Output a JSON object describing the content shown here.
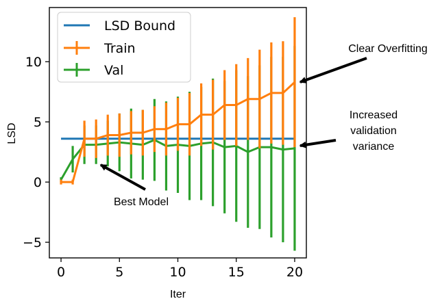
{
  "chart_data": {
    "type": "line",
    "xlabel": "Iter",
    "ylabel": "LSD",
    "xlim": [
      -1,
      21
    ],
    "ylim": [
      -6.3,
      14.5
    ],
    "xticks": [
      0,
      5,
      10,
      15,
      20
    ],
    "xtick_labels": [
      "0",
      "5",
      "10",
      "15",
      "20"
    ],
    "yticks": [
      -5,
      0,
      5,
      10
    ],
    "ytick_labels": [
      "−5",
      "0",
      "5",
      "10"
    ],
    "grid": false,
    "legend_position": "top-left",
    "x": [
      0,
      1,
      2,
      3,
      4,
      5,
      6,
      7,
      8,
      9,
      10,
      11,
      12,
      13,
      14,
      15,
      16,
      17,
      18,
      19,
      20
    ],
    "series": [
      {
        "name": "LSD Bound",
        "color": "#1f77b4",
        "kind": "line",
        "values": [
          3.6,
          3.6,
          3.6,
          3.6,
          3.6,
          3.6,
          3.6,
          3.6,
          3.6,
          3.6,
          3.6,
          3.6,
          3.6,
          3.6,
          3.6,
          3.6,
          3.6,
          3.6,
          3.6,
          3.6,
          3.6
        ]
      },
      {
        "name": "Train",
        "color": "#ff7f0e",
        "kind": "errorbar",
        "values": [
          0.0,
          0.0,
          3.6,
          3.6,
          3.9,
          3.9,
          4.1,
          4.1,
          4.4,
          4.4,
          4.8,
          4.8,
          5.6,
          5.6,
          6.4,
          6.4,
          6.9,
          6.9,
          7.4,
          7.4,
          8.3
        ],
        "errors": [
          0.2,
          0.2,
          1.5,
          1.6,
          1.7,
          1.8,
          1.8,
          1.9,
          1.9,
          2.2,
          2.2,
          2.6,
          2.6,
          2.9,
          2.9,
          3.4,
          3.4,
          4.1,
          4.2,
          4.3,
          5.4
        ]
      },
      {
        "name": "Val",
        "color": "#2ca02c",
        "kind": "errorbar",
        "values": [
          0.2,
          1.9,
          3.1,
          3.1,
          3.2,
          3.3,
          3.2,
          3.1,
          3.5,
          3.0,
          3.1,
          3.0,
          3.2,
          3.3,
          2.9,
          3.0,
          2.5,
          2.9,
          2.9,
          2.7,
          2.8
        ],
        "errors": [
          0.2,
          1.1,
          1.6,
          1.6,
          1.9,
          2.4,
          2.9,
          2.9,
          3.4,
          3.7,
          4.0,
          4.5,
          4.7,
          5.3,
          5.5,
          6.3,
          6.3,
          6.8,
          7.5,
          7.7,
          8.5
        ]
      }
    ],
    "annotations": [
      {
        "text": "Clear Overfitting",
        "points_to": {
          "x": 20,
          "y": 8.3
        }
      },
      {
        "text": "Increased validation variance",
        "lines": [
          "Increased",
          "validation",
          "variance"
        ],
        "points_to": {
          "x": 20,
          "y": 2.8
        }
      },
      {
        "text": "Best Model",
        "points_to": {
          "x": 3,
          "y": 1.6
        }
      }
    ]
  }
}
